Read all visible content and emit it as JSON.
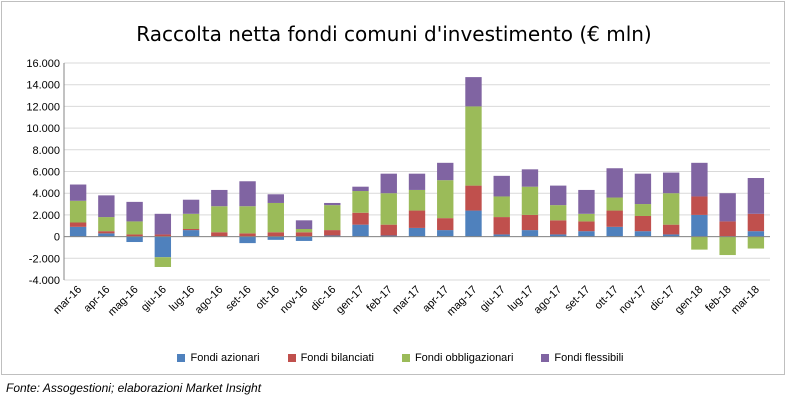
{
  "chart_data": {
    "type": "bar",
    "stacked": true,
    "title": "Raccolta netta fondi comuni d'investimento (€ mln)",
    "xlabel": "",
    "ylabel": "",
    "ylim": [
      -4000,
      16000
    ],
    "yticks": [
      -4000,
      -2000,
      0,
      2000,
      4000,
      6000,
      8000,
      10000,
      12000,
      14000,
      16000
    ],
    "ytick_labels": [
      "-4.000",
      "-2.000",
      "0",
      "2.000",
      "4.000",
      "6.000",
      "8.000",
      "10.000",
      "12.000",
      "14.000",
      "16.000"
    ],
    "grid": true,
    "legend_position": "bottom",
    "categories": [
      "mar-16",
      "apr-16",
      "mag-16",
      "giu-16",
      "lug-16",
      "ago-16",
      "set-16",
      "ott-16",
      "nov-16",
      "dic-16",
      "gen-17",
      "feb-17",
      "mar-17",
      "apr-17",
      "mag-17",
      "giu-17",
      "lug-17",
      "ago-17",
      "set-17",
      "ott-17",
      "nov-17",
      "dic-17",
      "gen-18",
      "feb-18",
      "mar-18"
    ],
    "series": [
      {
        "name": "Fondi azionari",
        "color": "#4f81bd",
        "values": [
          900,
          300,
          -500,
          -1900,
          600,
          0,
          -600,
          -300,
          -400,
          100,
          1100,
          100,
          800,
          600,
          2400,
          200,
          600,
          200,
          500,
          900,
          500,
          200,
          2000,
          0,
          500
        ]
      },
      {
        "name": "Fondi bilanciati",
        "color": "#c0504d",
        "values": [
          400,
          200,
          200,
          200,
          100,
          400,
          300,
          400,
          400,
          500,
          1100,
          1000,
          1600,
          1100,
          2300,
          1600,
          1400,
          1300,
          900,
          1500,
          1400,
          900,
          1700,
          1400,
          1600
        ]
      },
      {
        "name": "Fondi obbligazionari",
        "color": "#9bbb59",
        "values": [
          2000,
          1300,
          1200,
          -900,
          1400,
          2400,
          2500,
          2700,
          300,
          2300,
          2000,
          2900,
          1900,
          3500,
          7300,
          1900,
          2600,
          1400,
          700,
          1200,
          1100,
          2900,
          -1200,
          -1700,
          -1100
        ]
      },
      {
        "name": "Fondi flessibili",
        "color": "#8064a2",
        "values": [
          1500,
          2000,
          1800,
          1900,
          1300,
          1500,
          2300,
          800,
          800,
          200,
          400,
          1800,
          1500,
          1600,
          2700,
          1900,
          1600,
          1800,
          2200,
          2700,
          2800,
          1900,
          3100,
          2600,
          3300
        ]
      }
    ]
  },
  "source_note": "Fonte: Assogestioni; elaborazioni Market Insight"
}
